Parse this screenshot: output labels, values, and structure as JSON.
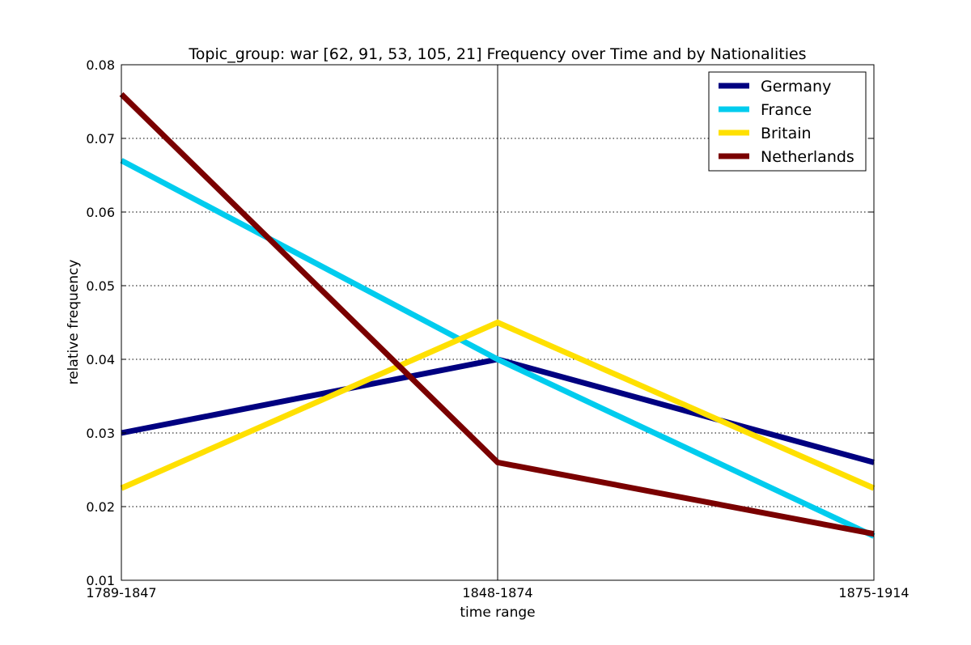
{
  "chart_data": {
    "type": "line",
    "title": "Topic_group: war [62, 91, 53, 105, 21] Frequency over Time and by Nationalities",
    "xlabel": "time range",
    "ylabel": "relative frequency",
    "categories": [
      "1789-1847",
      "1848-1874",
      "1875-1914"
    ],
    "ylim": [
      0.01,
      0.08
    ],
    "yticks": [
      "0.01",
      "0.02",
      "0.03",
      "0.04",
      "0.05",
      "0.06",
      "0.07",
      "0.08"
    ],
    "grid": "dotted horizontal, solid vertical at middle category",
    "legend_position": "top-right",
    "series": [
      {
        "name": "Germany",
        "color": "#000080",
        "values": [
          0.03,
          0.04,
          0.026
        ]
      },
      {
        "name": "France",
        "color": "#00ccee",
        "values": [
          0.067,
          0.04,
          0.016
        ]
      },
      {
        "name": "Britain",
        "color": "#ffe000",
        "values": [
          0.0225,
          0.045,
          0.0225
        ]
      },
      {
        "name": "Netherlands",
        "color": "#7a0000",
        "values": [
          0.076,
          0.026,
          0.0163
        ]
      }
    ]
  }
}
